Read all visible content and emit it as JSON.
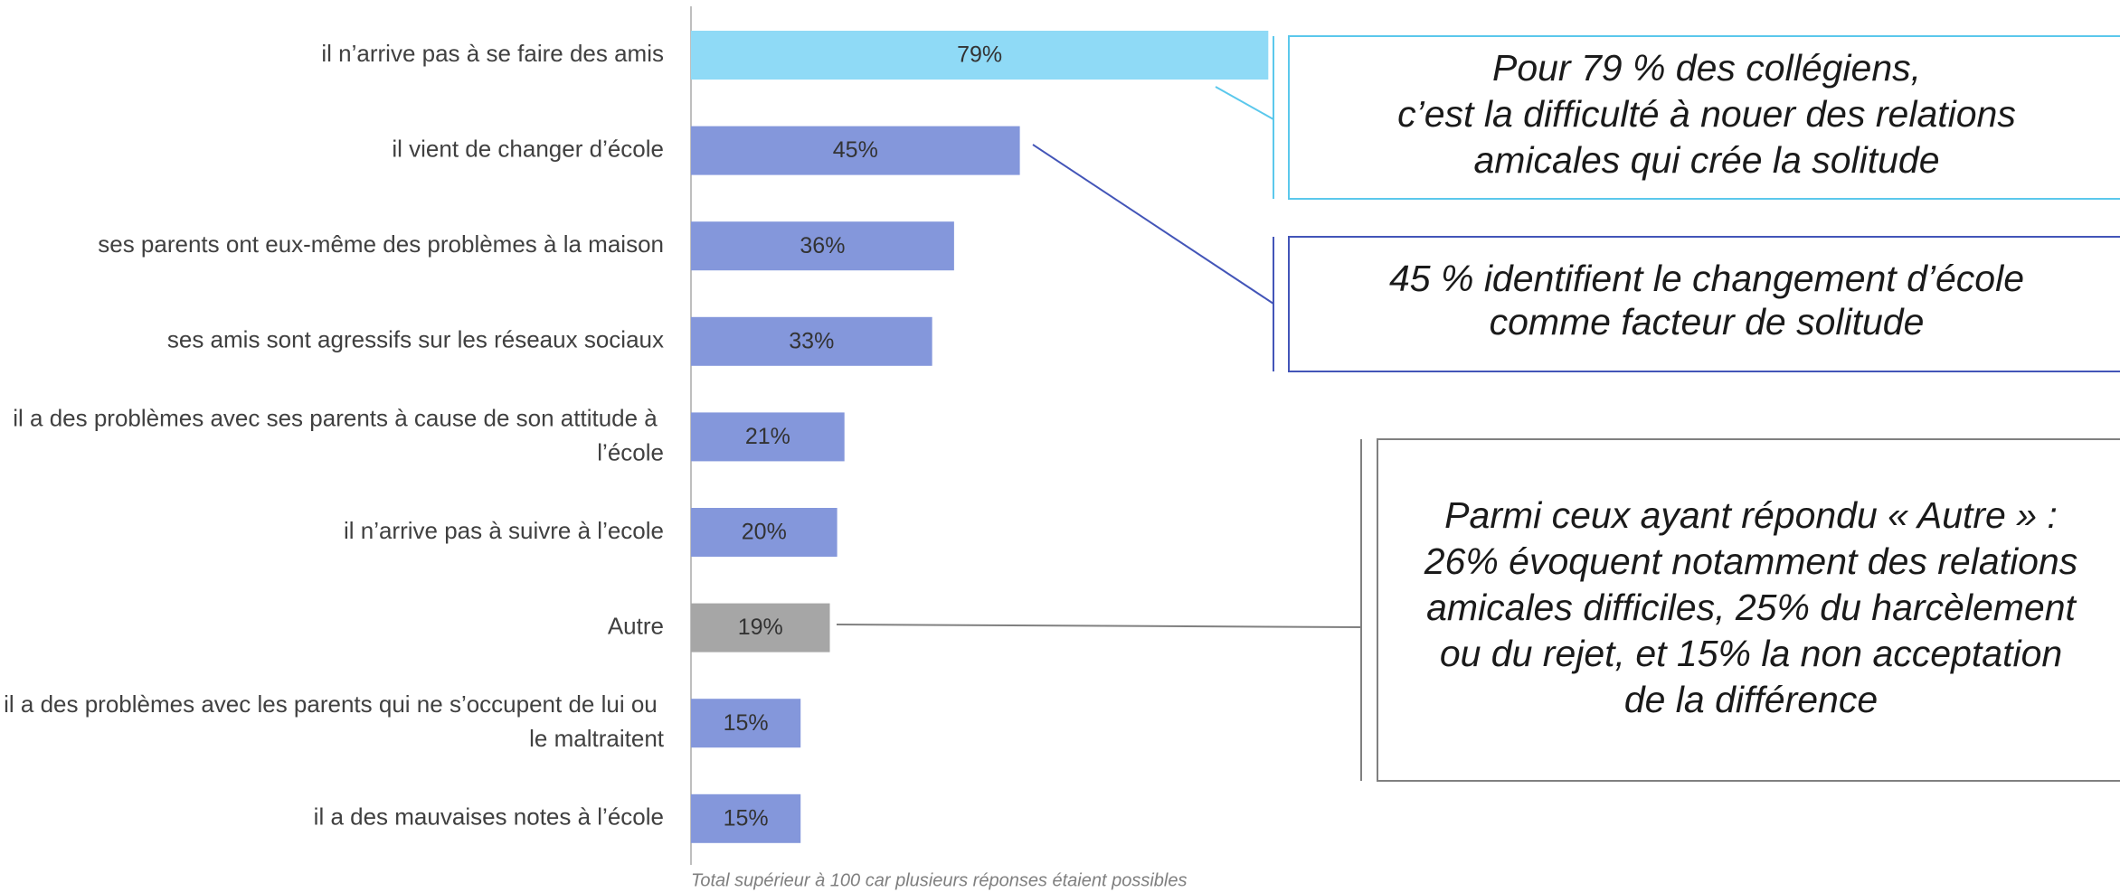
{
  "chart_data": {
    "type": "bar",
    "orientation": "horizontal",
    "categories": [
      "il n’arrive pas à se faire des amis",
      "il vient de changer d’école",
      "ses parents ont eux-même des problèmes à la maison",
      "ses amis sont agressifs sur les réseaux sociaux",
      "il a des problèmes avec ses parents à cause de son attitude à l’école",
      "il n’arrive pas à suivre à l’ecole",
      "Autre",
      "il a des problèmes avec les parents qui ne s’occupent de lui ou le maltraitent",
      "il a des mauvaises notes à l’école"
    ],
    "values": [
      79,
      45,
      36,
      33,
      21,
      20,
      19,
      15,
      15
    ],
    "value_labels": [
      "79%",
      "45%",
      "36%",
      "33%",
      "21%",
      "20%",
      "19%",
      "15%",
      "15%"
    ],
    "colors": [
      "#8fdaf6",
      "#8497db",
      "#8497db",
      "#8497db",
      "#8497db",
      "#8497db",
      "#a6a6a6",
      "#8497db",
      "#8497db"
    ],
    "xlim": [
      0,
      100
    ],
    "footnote": "Total supérieur à 100 car plusieurs réponses étaient possibles",
    "annotations": [
      {
        "color": "#5bc8ec",
        "lines": [
          "Pour 79 % des collégiens,",
          "c’est la difficulté à nouer des relations",
          "amicales qui crée la solitude"
        ]
      },
      {
        "color": "#4355b8",
        "lines": [
          "45 % identifient le changement d’école",
          "comme facteur de solitude"
        ]
      },
      {
        "color": "#808080",
        "lines": [
          "Parmi ceux ayant répondu « Autre » :",
          "26% évoquent notamment des relations",
          "amicales difficiles, 25% du harcèlement",
          "ou du rejet, et 15% la non acceptation",
          "de la différence"
        ]
      }
    ]
  }
}
